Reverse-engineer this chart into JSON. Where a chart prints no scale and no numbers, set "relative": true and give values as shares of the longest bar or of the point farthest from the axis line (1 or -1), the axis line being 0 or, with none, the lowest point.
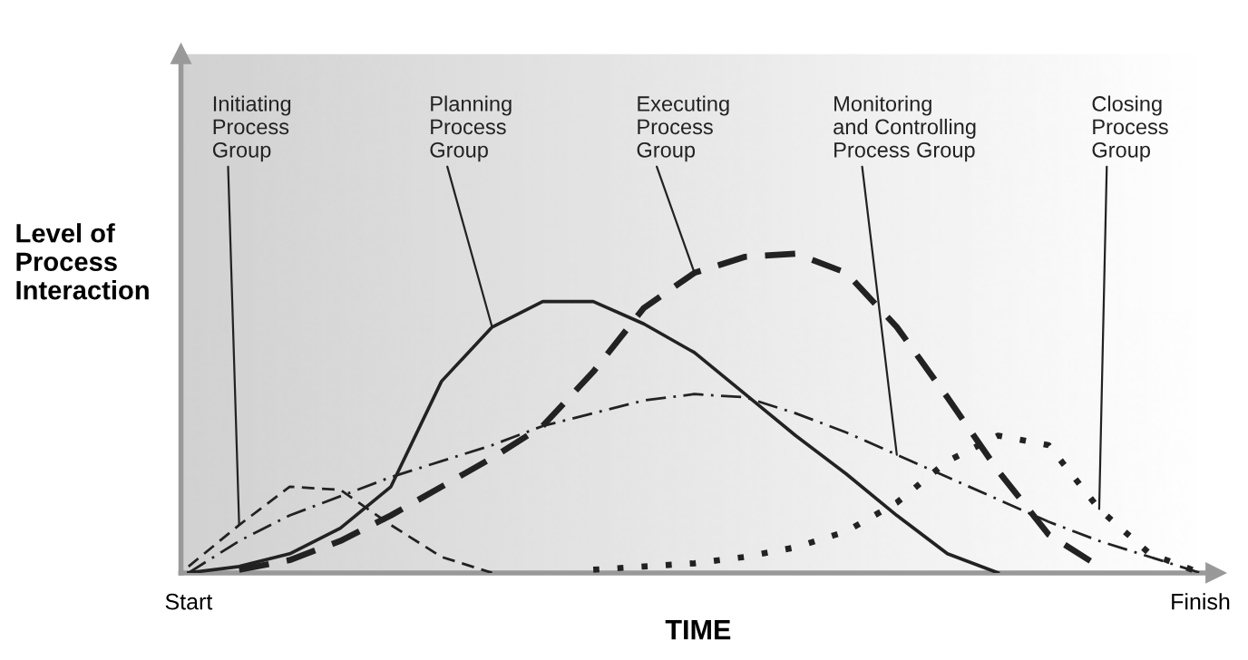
{
  "chart_data": {
    "type": "line",
    "relative": true,
    "xlabel": "TIME",
    "ylabel": "Level of\nProcess\nInteraction",
    "grid": false,
    "legend": false,
    "marker": "none",
    "categories": [
      "Start",
      null,
      null,
      null,
      null,
      null,
      null,
      null,
      null,
      null,
      null,
      null,
      null,
      null,
      null,
      null,
      null,
      null,
      null,
      null,
      "Finish"
    ],
    "series": [
      {
        "name": "Initiating\nProcess\nGroup",
        "color": "#222222",
        "line_style": "dashed",
        "values": [
          0.02,
          0.15,
          0.27,
          0.26,
          0.15,
          0.05,
          0,
          null,
          null,
          null,
          null,
          null,
          null,
          null,
          null,
          null,
          null,
          null,
          null,
          null,
          null
        ]
      },
      {
        "name": "Planning\nProcess\nGroup",
        "color": "#222222",
        "line_style": "solid",
        "values": [
          0,
          0.02,
          0.06,
          0.14,
          0.27,
          0.6,
          0.77,
          0.85,
          0.85,
          0.78,
          0.69,
          0.56,
          0.43,
          0.31,
          0.18,
          0.06,
          0,
          null,
          null,
          null,
          null
        ]
      },
      {
        "name": "Executing\nProcess\nGroup",
        "color": "#222222",
        "line_style": "dashed",
        "values": [
          null,
          0.01,
          0.04,
          0.1,
          0.18,
          0.27,
          0.36,
          0.46,
          0.63,
          0.83,
          0.94,
          0.99,
          1.0,
          0.94,
          0.77,
          0.55,
          0.32,
          0.12,
          0.02,
          null,
          null
        ]
      },
      {
        "name": "Monitoring\nand Controlling\nProcess Group",
        "color": "#222222",
        "line_style": "dashdot",
        "values": [
          0,
          0.1,
          0.18,
          0.24,
          0.3,
          0.35,
          0.4,
          0.46,
          0.5,
          0.54,
          0.56,
          0.55,
          0.5,
          0.44,
          0.37,
          0.3,
          0.23,
          0.16,
          0.1,
          0.05,
          0
        ]
      },
      {
        "name": "Closing\nProcess\nGroup",
        "color": "#222222",
        "line_style": "dotted",
        "values": [
          null,
          null,
          null,
          null,
          null,
          null,
          null,
          null,
          0.01,
          0.02,
          0.03,
          0.05,
          0.08,
          0.13,
          0.22,
          0.35,
          0.43,
          0.4,
          0.2,
          0.06,
          0
        ]
      }
    ]
  }
}
